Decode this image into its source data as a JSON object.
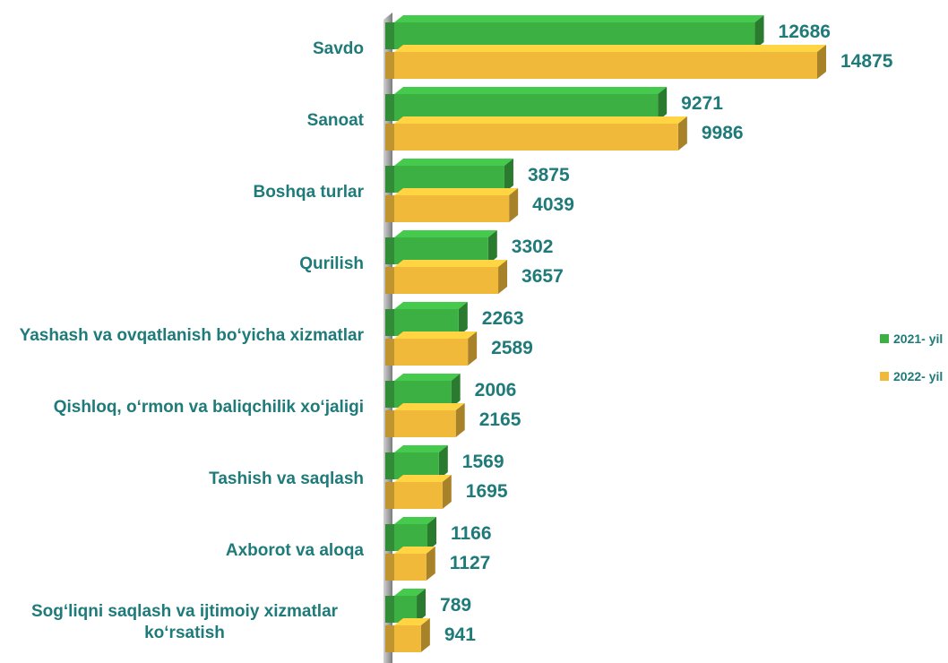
{
  "chart_data": {
    "type": "bar",
    "orientation": "horizontal",
    "categories": [
      "Savdo",
      "Sanoat",
      "Boshqa turlar",
      "Qurilish",
      "Yashash va ovqatlanish bo‘yicha xizmatlar",
      "Qishloq, o‘rmon va baliqchilik xo‘jaligi",
      "Tashish va saqlash",
      "Axborot va aloqa",
      "Sog‘liqni saqlash va ijtimoiy xizmatlar ko‘rsatish"
    ],
    "series": [
      {
        "name": "2021- yil",
        "color": "#3cb043",
        "values": [
          12686,
          9271,
          3875,
          3302,
          2263,
          2006,
          1569,
          1166,
          789
        ]
      },
      {
        "name": "2022- yil",
        "color": "#f0b93a",
        "values": [
          14875,
          9986,
          4039,
          3657,
          2589,
          2165,
          1695,
          1127,
          941
        ]
      }
    ],
    "legend": "right"
  }
}
